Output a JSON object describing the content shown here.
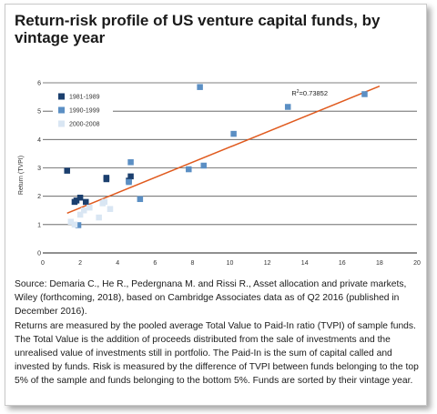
{
  "card": {
    "title": "Return-risk profile of US venture capital funds, by vintage year",
    "source_text": "Source: Demaria C., He R., Pedergnana M. and Rissi R., Asset allocation and private markets, Wiley (forthcoming, 2018), based on Cambridge Associates data as of Q2 2016 (published in December 2016).",
    "note_text": "Returns are measured by the pooled average Total Value to Paid-In ratio (TVPI) of sample funds. The Total Value is the addition of proceeds distributed from the sale of investments and the unrealised value of investments still in portfolio. The Paid-In is the sum of capital called and invested by funds. Risk is measured by the difference of TVPI between funds belonging to the top 5% of the sample and funds belonging to the bottom 5%. Funds are sorted by their vintage year."
  },
  "chart_data": {
    "type": "scatter",
    "title": "Return-risk profile of US venture capital funds, by vintage year",
    "xlabel": "",
    "ylabel": "Return (TVPI)",
    "xlim": [
      0,
      20
    ],
    "ylim": [
      0,
      6
    ],
    "xticks": [
      0,
      2,
      4,
      6,
      8,
      10,
      12,
      14,
      16,
      18,
      20
    ],
    "yticks": [
      0,
      1,
      2,
      3,
      4,
      5,
      6
    ],
    "grid": "horizontal",
    "legend_position": "top-left",
    "series": [
      {
        "name": "1981-1989",
        "color": "#1b3f6e",
        "points": [
          [
            1.3,
            2.9
          ],
          [
            1.7,
            1.8
          ],
          [
            1.8,
            1.85
          ],
          [
            2.0,
            1.95
          ],
          [
            2.3,
            1.8
          ],
          [
            3.4,
            2.65
          ],
          [
            3.4,
            2.6
          ],
          [
            4.6,
            2.55
          ],
          [
            4.7,
            2.7
          ]
        ]
      },
      {
        "name": "1990-1999",
        "color": "#5b8fc4",
        "points": [
          [
            1.9,
            0.98
          ],
          [
            4.7,
            3.2
          ],
          [
            4.6,
            2.5
          ],
          [
            5.2,
            1.9
          ],
          [
            7.8,
            2.95
          ],
          [
            8.4,
            5.85
          ],
          [
            8.6,
            3.08
          ],
          [
            10.2,
            4.2
          ],
          [
            13.1,
            5.15
          ],
          [
            17.2,
            5.6
          ]
        ]
      },
      {
        "name": "2000-2008",
        "color": "#d9e6f3",
        "points": [
          [
            1.5,
            1.1
          ],
          [
            1.7,
            1.0
          ],
          [
            2.0,
            1.35
          ],
          [
            2.2,
            1.5
          ],
          [
            2.5,
            1.6
          ],
          [
            3.0,
            1.25
          ],
          [
            3.2,
            1.75
          ],
          [
            3.6,
            1.55
          ],
          [
            3.3,
            1.8
          ]
        ]
      }
    ],
    "trendline": {
      "color": "#e05a1e",
      "x": [
        1.3,
        18.0
      ],
      "y": [
        1.4,
        5.88
      ],
      "label": "R",
      "label_sup": "2",
      "label_value": "=0.73852"
    }
  }
}
